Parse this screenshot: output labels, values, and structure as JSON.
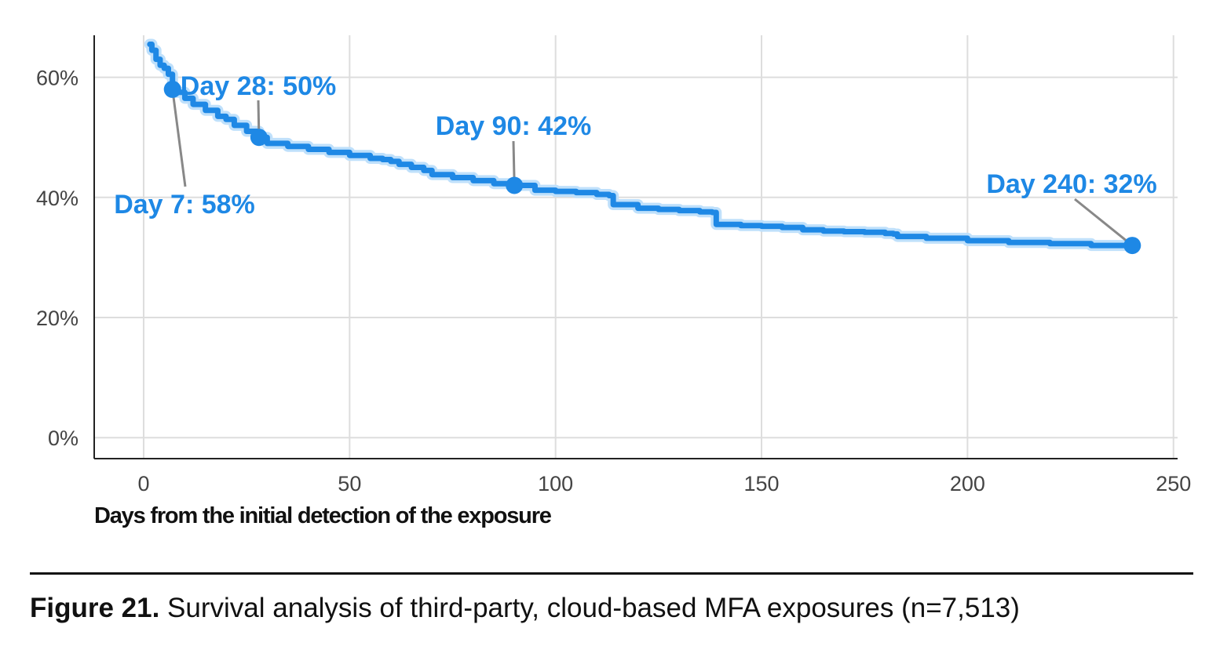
{
  "chart_data": {
    "type": "line",
    "xlabel": "Days from the initial detection of the exposure",
    "ylabel": "",
    "xlim": [
      -12,
      251
    ],
    "ylim": [
      -3.5,
      67
    ],
    "x_ticks": [
      0,
      50,
      100,
      150,
      200,
      250
    ],
    "y_ticks": [
      0,
      20,
      40,
      60
    ],
    "x_tick_labels": [
      "0",
      "50",
      "100",
      "150",
      "200",
      "250"
    ],
    "y_tick_labels": [
      "0%",
      "20%",
      "40%",
      "60%"
    ],
    "grid": true,
    "legend": "none",
    "series": [
      {
        "color": "#1e88e5",
        "x": [
          1.5,
          2,
          3,
          4,
          5,
          6,
          7,
          8,
          10,
          12,
          15,
          18,
          20,
          22,
          25,
          28,
          30,
          35,
          40,
          45,
          50,
          55,
          58,
          60,
          62,
          65,
          68,
          70,
          75,
          80,
          85,
          90,
          95,
          100,
          105,
          110,
          113,
          114,
          120,
          125,
          130,
          135,
          138,
          139,
          145,
          150,
          155,
          160,
          165,
          170,
          175,
          180,
          182,
          183,
          190,
          200,
          210,
          220,
          230,
          240
        ],
        "y": [
          65.5,
          64.5,
          63,
          62,
          61.5,
          60.5,
          58,
          57.5,
          56.5,
          55.5,
          54.5,
          53.5,
          53,
          52,
          51,
          50,
          49,
          48.5,
          48,
          47.5,
          47,
          46.5,
          46.3,
          46,
          45.5,
          45,
          44.5,
          43.8,
          43.3,
          42.8,
          42.3,
          42,
          41.2,
          41,
          40.8,
          40.5,
          40.3,
          38.8,
          38.2,
          38,
          37.8,
          37.6,
          37.5,
          35.5,
          35.3,
          35.2,
          35,
          34.6,
          34.4,
          34.3,
          34.2,
          34,
          33.9,
          33.5,
          33.2,
          32.8,
          32.5,
          32.3,
          32,
          31.8
        ]
      }
    ],
    "annotations": [
      {
        "x": 7,
        "y": 58,
        "label": "Day 7: 58%"
      },
      {
        "x": 28,
        "y": 50,
        "label": "Day 28: 50%"
      },
      {
        "x": 90,
        "y": 42,
        "label": "Day 90: 42%"
      },
      {
        "x": 240,
        "y": 32,
        "label": "Day 240: 32%"
      }
    ]
  },
  "caption": {
    "prefix": "Figure 21.",
    "text": " Survival analysis of third-party, cloud-based MFA exposures (n=7,513)"
  }
}
